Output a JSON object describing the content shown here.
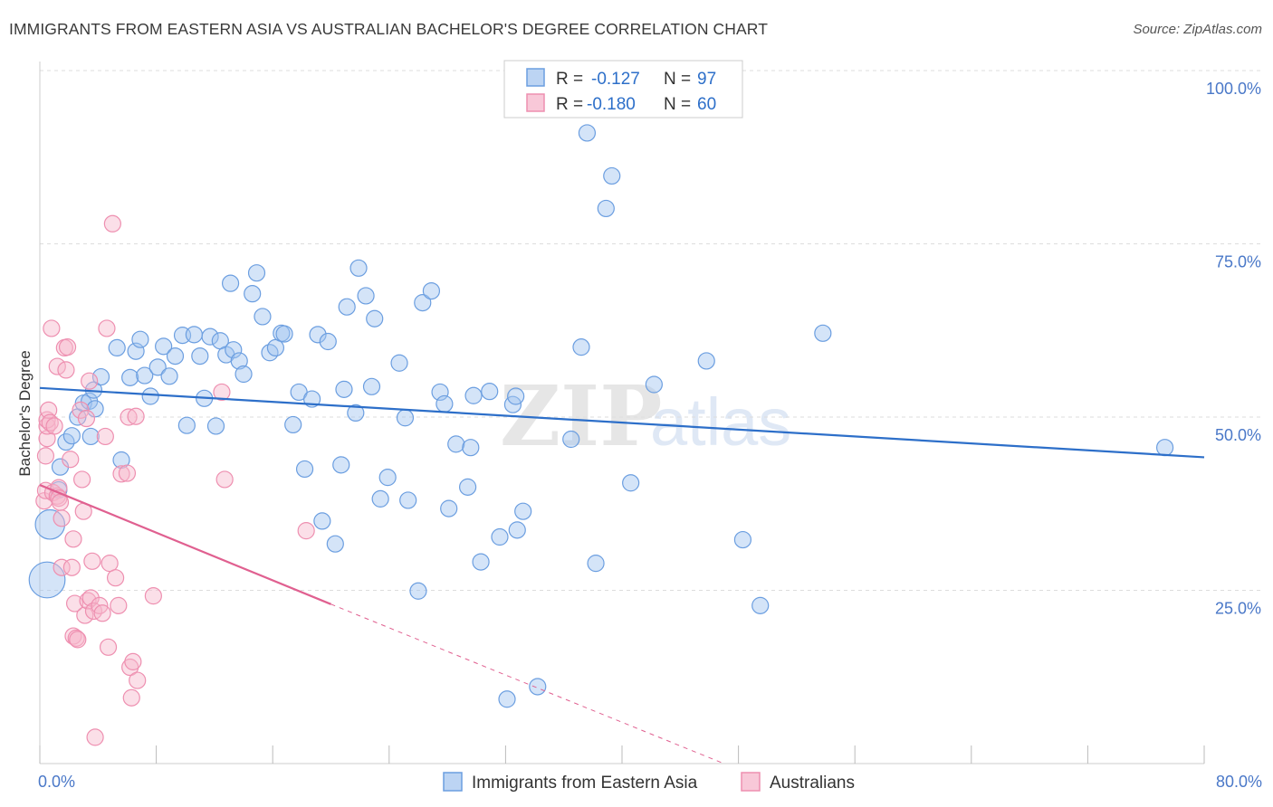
{
  "title": "IMMIGRANTS FROM EASTERN ASIA VS AUSTRALIAN BACHELOR'S DEGREE CORRELATION CHART",
  "source": "Source: ZipAtlas.com",
  "watermark": {
    "zip": "ZIP",
    "atlas": "atlas"
  },
  "colors": {
    "blue": "#6b9ee0",
    "blue_line": "#2d6fc9",
    "pink": "#ee8fb0",
    "pink_line": "#e06090",
    "axis_text": "#4a78c8"
  },
  "chart_data": {
    "type": "scatter",
    "title": "IMMIGRANTS FROM EASTERN ASIA VS AUSTRALIAN BACHELOR'S DEGREE CORRELATION CHART",
    "xlabel": "",
    "ylabel": "Bachelor's Degree",
    "xlim": [
      0,
      80
    ],
    "ylim": [
      0,
      100
    ],
    "x_tick_labels": [
      "0.0%",
      "80.0%"
    ],
    "y_ticks": [
      25,
      50,
      75,
      100
    ],
    "y_tick_labels": [
      "25.0%",
      "50.0%",
      "75.0%",
      "100.0%"
    ],
    "grid": true,
    "legend_position": "top-center",
    "legend": [
      {
        "r_label": "R =",
        "r_value": "-0.127",
        "n_label": "N =",
        "n_value": "97"
      },
      {
        "r_label": "R =",
        "r_value": "-0.180",
        "n_label": "N =",
        "n_value": "60"
      }
    ],
    "series": [
      {
        "name": "Immigrants from Eastern Asia",
        "color": "#6b9ee0",
        "trend": {
          "x": [
            0,
            80
          ],
          "y": [
            54.2,
            44.2
          ]
        },
        "points": [
          [
            0.5,
            26.5,
            2.2
          ],
          [
            0.7,
            34.5,
            1.8
          ],
          [
            1.3,
            39.5,
            1
          ],
          [
            1.4,
            42.8,
            1
          ],
          [
            1.8,
            46.4,
            1
          ],
          [
            2.2,
            47.3,
            1
          ],
          [
            2.6,
            50.0,
            1
          ],
          [
            3.0,
            52.0,
            1
          ],
          [
            3.4,
            52.3,
            1
          ],
          [
            3.5,
            47.2,
            1
          ],
          [
            3.8,
            51.2,
            1
          ],
          [
            3.7,
            53.9,
            1
          ],
          [
            4.2,
            55.8,
            1
          ],
          [
            5.6,
            43.8,
            1
          ],
          [
            5.3,
            60.0,
            1
          ],
          [
            6.2,
            55.7,
            1
          ],
          [
            6.6,
            59.5,
            1
          ],
          [
            6.9,
            61.2,
            1
          ],
          [
            7.2,
            56.0,
            1
          ],
          [
            7.6,
            53.0,
            1
          ],
          [
            8.1,
            57.2,
            1
          ],
          [
            8.5,
            60.2,
            1
          ],
          [
            8.9,
            55.9,
            1
          ],
          [
            9.3,
            58.8,
            1
          ],
          [
            9.8,
            61.8,
            1
          ],
          [
            10.1,
            48.8,
            1
          ],
          [
            10.6,
            61.9,
            1
          ],
          [
            11.0,
            58.8,
            1
          ],
          [
            11.3,
            52.7,
            1
          ],
          [
            11.7,
            61.6,
            1
          ],
          [
            12.1,
            48.7,
            1
          ],
          [
            12.4,
            61.0,
            1
          ],
          [
            12.8,
            59.0,
            1
          ],
          [
            13.3,
            59.7,
            1
          ],
          [
            13.7,
            58.1,
            1
          ],
          [
            14.0,
            56.2,
            1
          ],
          [
            13.1,
            69.3,
            1
          ],
          [
            14.6,
            67.8,
            1
          ],
          [
            14.9,
            70.8,
            1
          ],
          [
            15.3,
            64.5,
            1
          ],
          [
            15.8,
            59.3,
            1
          ],
          [
            16.2,
            60.0,
            1
          ],
          [
            16.6,
            62.1,
            1
          ],
          [
            16.8,
            62.0,
            1
          ],
          [
            17.4,
            48.9,
            1
          ],
          [
            17.8,
            53.6,
            1
          ],
          [
            18.2,
            42.5,
            1
          ],
          [
            18.7,
            52.6,
            1
          ],
          [
            19.1,
            61.9,
            1
          ],
          [
            19.4,
            35.0,
            1
          ],
          [
            19.8,
            60.9,
            1
          ],
          [
            20.3,
            31.7,
            1
          ],
          [
            20.7,
            43.1,
            1
          ],
          [
            20.9,
            54.0,
            1
          ],
          [
            21.1,
            65.9,
            1
          ],
          [
            21.7,
            50.6,
            1
          ],
          [
            21.9,
            71.5,
            1
          ],
          [
            22.4,
            67.5,
            1
          ],
          [
            22.8,
            54.4,
            1
          ],
          [
            23.0,
            64.2,
            1
          ],
          [
            23.4,
            38.2,
            1
          ],
          [
            23.9,
            41.3,
            1
          ],
          [
            24.7,
            57.8,
            1
          ],
          [
            25.1,
            49.9,
            1
          ],
          [
            25.3,
            38.0,
            1
          ],
          [
            26.0,
            24.9,
            1
          ],
          [
            26.3,
            66.5,
            1
          ],
          [
            26.9,
            68.2,
            1
          ],
          [
            27.5,
            53.6,
            1
          ],
          [
            27.8,
            51.9,
            1
          ],
          [
            28.1,
            36.8,
            1
          ],
          [
            28.6,
            46.1,
            1
          ],
          [
            29.4,
            39.9,
            1
          ],
          [
            29.6,
            45.6,
            1
          ],
          [
            29.8,
            53.1,
            1
          ],
          [
            30.3,
            29.1,
            1
          ],
          [
            30.9,
            53.7,
            1
          ],
          [
            31.6,
            32.7,
            1
          ],
          [
            32.1,
            9.3,
            1
          ],
          [
            32.5,
            51.8,
            1
          ],
          [
            32.7,
            53.0,
            1
          ],
          [
            32.8,
            33.7,
            1
          ],
          [
            33.2,
            36.4,
            1
          ],
          [
            34.2,
            11.1,
            1
          ],
          [
            36.5,
            46.8,
            1
          ],
          [
            37.2,
            60.1,
            1
          ],
          [
            37.6,
            91.0,
            1
          ],
          [
            38.2,
            28.9,
            1
          ],
          [
            38.9,
            80.1,
            1
          ],
          [
            39.3,
            84.8,
            1
          ],
          [
            40.6,
            40.5,
            1
          ],
          [
            42.2,
            54.7,
            1
          ],
          [
            45.8,
            58.1,
            1
          ],
          [
            48.3,
            32.3,
            1
          ],
          [
            49.5,
            22.8,
            1
          ],
          [
            53.8,
            62.1,
            1
          ],
          [
            77.3,
            45.6,
            1
          ]
        ]
      },
      {
        "name": "Australians",
        "color": "#ee8fb0",
        "trend": {
          "x": [
            0,
            20
          ],
          "y": [
            40.2,
            23.0
          ]
        },
        "trend_dashed": {
          "x": [
            20,
            47
          ],
          "y": [
            23.0,
            0
          ]
        },
        "points": [
          [
            0.3,
            37.9,
            1
          ],
          [
            0.4,
            39.4,
            1
          ],
          [
            0.4,
            44.4,
            1
          ],
          [
            0.5,
            46.9,
            1
          ],
          [
            0.5,
            48.7,
            1
          ],
          [
            0.5,
            49.6,
            1
          ],
          [
            0.6,
            51.0,
            1
          ],
          [
            0.7,
            49.2,
            1
          ],
          [
            0.8,
            62.8,
            1
          ],
          [
            0.9,
            39.1,
            1
          ],
          [
            1.0,
            48.7,
            1
          ],
          [
            1.2,
            38.6,
            1
          ],
          [
            1.2,
            57.3,
            1
          ],
          [
            1.3,
            39.8,
            1
          ],
          [
            1.3,
            38.3,
            1
          ],
          [
            1.4,
            37.7,
            1
          ],
          [
            1.5,
            35.4,
            1
          ],
          [
            1.5,
            28.3,
            1
          ],
          [
            1.7,
            60.0,
            1
          ],
          [
            1.8,
            56.8,
            1
          ],
          [
            1.9,
            60.1,
            1
          ],
          [
            2.1,
            43.9,
            1
          ],
          [
            2.2,
            28.3,
            1
          ],
          [
            2.3,
            18.4,
            1
          ],
          [
            2.3,
            32.4,
            1
          ],
          [
            2.4,
            23.1,
            1
          ],
          [
            2.5,
            18.1,
            1
          ],
          [
            2.6,
            17.9,
            1
          ],
          [
            2.8,
            51.0,
            1
          ],
          [
            2.9,
            41.0,
            1
          ],
          [
            3.0,
            36.4,
            1
          ],
          [
            3.1,
            21.4,
            1
          ],
          [
            3.2,
            49.8,
            1
          ],
          [
            3.3,
            23.5,
            1
          ],
          [
            3.4,
            55.2,
            1
          ],
          [
            3.5,
            23.9,
            1
          ],
          [
            3.6,
            29.2,
            1
          ],
          [
            3.7,
            22.0,
            1
          ],
          [
            3.8,
            3.8,
            1
          ],
          [
            4.1,
            22.8,
            1
          ],
          [
            4.3,
            21.7,
            1
          ],
          [
            4.5,
            47.2,
            1
          ],
          [
            4.6,
            62.8,
            1
          ],
          [
            4.7,
            16.8,
            1
          ],
          [
            4.8,
            28.9,
            1
          ],
          [
            5.0,
            77.9,
            1
          ],
          [
            5.2,
            26.8,
            1
          ],
          [
            5.4,
            22.8,
            1
          ],
          [
            5.6,
            41.8,
            1
          ],
          [
            6.0,
            41.9,
            1
          ],
          [
            6.1,
            50.0,
            1
          ],
          [
            6.2,
            13.9,
            1
          ],
          [
            6.3,
            9.5,
            1
          ],
          [
            6.4,
            14.7,
            1
          ],
          [
            6.6,
            50.1,
            1
          ],
          [
            6.7,
            12.0,
            1
          ],
          [
            7.8,
            24.2,
            1
          ],
          [
            12.5,
            53.6,
            1
          ],
          [
            12.7,
            41.0,
            1
          ],
          [
            18.3,
            33.6,
            1
          ]
        ]
      }
    ]
  }
}
